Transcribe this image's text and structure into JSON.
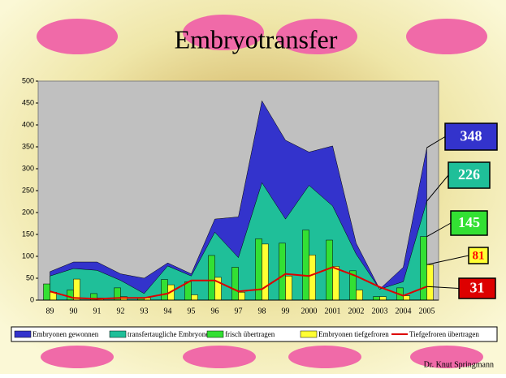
{
  "chart_data": {
    "type": "combo",
    "title": "Embryotransfer",
    "footer": "Dr. Knut Springmann",
    "categories": [
      "89",
      "90",
      "91",
      "92",
      "93",
      "94",
      "95",
      "96",
      "97",
      "98",
      "99",
      "2000",
      "2001",
      "2002",
      "2003",
      "2004",
      "2005"
    ],
    "ylim": [
      0,
      500
    ],
    "yticks": [
      0,
      50,
      100,
      150,
      200,
      250,
      300,
      350,
      400,
      450,
      500
    ],
    "grid": false,
    "series": [
      {
        "name": "Embryonen gewonnen",
        "type": "area",
        "color": "#3333cc",
        "label_text": "#ffffff",
        "values": [
          65,
          87,
          87,
          60,
          50,
          85,
          60,
          185,
          190,
          455,
          365,
          338,
          352,
          130,
          25,
          75,
          348
        ]
      },
      {
        "name": "transfertaugliche Embryonen",
        "type": "area",
        "color": "#1fbf99",
        "label_text": "#ffffff",
        "values": [
          55,
          72,
          68,
          45,
          15,
          78,
          55,
          155,
          97,
          268,
          185,
          262,
          215,
          105,
          25,
          42,
          226
        ]
      },
      {
        "name": "frisch übertragen",
        "type": "bar",
        "color": "#33e033",
        "label_text": "#ffffff",
        "values": [
          37,
          23,
          15,
          28,
          5,
          47,
          42,
          102,
          75,
          140,
          130,
          160,
          137,
          67,
          8,
          28,
          145
        ]
      },
      {
        "name": "Embryonen tiefgefroren",
        "type": "bar",
        "color": "#ffff33",
        "label_text": "#ff0000",
        "values": [
          18,
          48,
          5,
          8,
          5,
          35,
          12,
          52,
          18,
          128,
          55,
          103,
          77,
          23,
          8,
          10,
          81
        ]
      },
      {
        "name": "Tiefgefroren übertragen",
        "type": "line",
        "color": "#dd0000",
        "label_text": "#ffffff",
        "values": [
          20,
          5,
          3,
          5,
          5,
          15,
          45,
          45,
          20,
          25,
          60,
          55,
          75,
          55,
          30,
          10,
          31
        ]
      }
    ]
  }
}
